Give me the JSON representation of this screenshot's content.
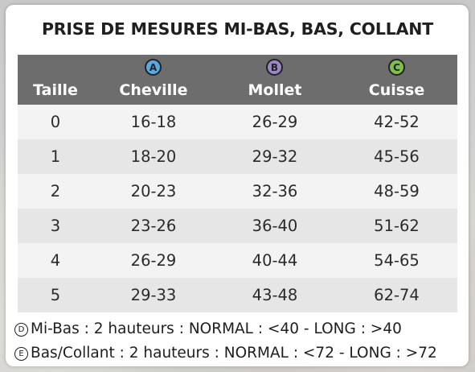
{
  "title": "PRISE DE MESURES MI-BAS, BAS, COLLANT",
  "colors": {
    "header_bg": "#6d6d6d",
    "row_alt": "#e6e6e6",
    "row_plain": "#f3f3f3",
    "badge_a": "#5aa8e0",
    "badge_b": "#9b86c7",
    "badge_c": "#7cc04a"
  },
  "headers": {
    "size": "Taille",
    "a": {
      "badge": "A",
      "label": "Cheville"
    },
    "b": {
      "badge": "B",
      "label": "Mollet"
    },
    "c": {
      "badge": "C",
      "label": "Cuisse"
    }
  },
  "rows": [
    {
      "size": "0",
      "a": "16-18",
      "b": "26-29",
      "c": "42-52"
    },
    {
      "size": "1",
      "a": "18-20",
      "b": "29-32",
      "c": "45-56"
    },
    {
      "size": "2",
      "a": "20-23",
      "b": "32-36",
      "c": "48-59"
    },
    {
      "size": "3",
      "a": "23-26",
      "b": "36-40",
      "c": "51-62"
    },
    {
      "size": "4",
      "a": "26-29",
      "b": "40-44",
      "c": "54-65"
    },
    {
      "size": "5",
      "a": "29-33",
      "b": "43-48",
      "c": "62-74"
    }
  ],
  "notes": [
    {
      "symbol": "D",
      "text": "Mi-Bas : 2 hauteurs : NORMAL : <40 - LONG : >40"
    },
    {
      "symbol": "E",
      "text": "Bas/Collant : 2 hauteurs : NORMAL : <72 - LONG : >72"
    }
  ]
}
